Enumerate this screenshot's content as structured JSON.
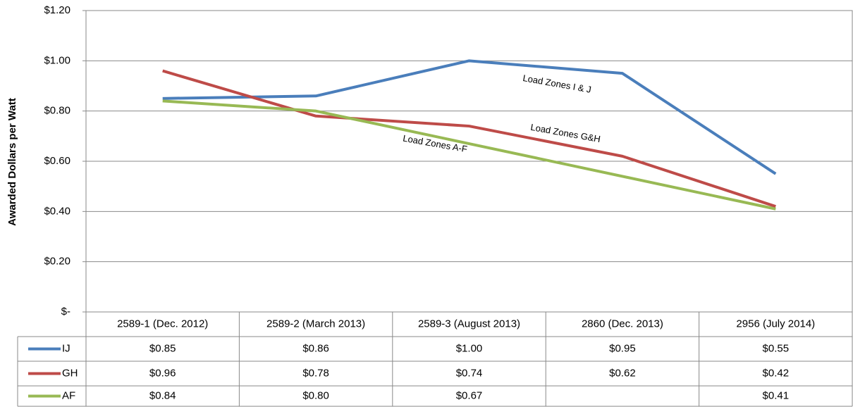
{
  "chart_data": {
    "type": "line",
    "y_title": "Awarded Dollars per Watt",
    "categories": [
      "2589-1 (Dec. 2012)",
      "2589-2 (March 2013)",
      "2589-3 (August 2013)",
      "2860 (Dec. 2013)",
      "2956 (July 2014)"
    ],
    "series": [
      {
        "name": "IJ",
        "color": "#4a7ebb",
        "values": [
          0.85,
          0.86,
          1.0,
          0.95,
          0.55
        ],
        "value_labels": [
          "$0.85",
          "$0.86",
          "$1.00",
          "$0.95",
          "$0.55"
        ]
      },
      {
        "name": "GH",
        "color": "#be4b48",
        "values": [
          0.96,
          0.78,
          0.74,
          0.62,
          0.42
        ],
        "value_labels": [
          "$0.96",
          "$0.78",
          "$0.74",
          "$0.62",
          "$0.42"
        ]
      },
      {
        "name": "AF",
        "color": "#98b954",
        "values": [
          0.84,
          0.8,
          0.67,
          null,
          0.41
        ],
        "value_labels": [
          "$0.84",
          "$0.80",
          "$0.67",
          null,
          "$0.41"
        ]
      }
    ],
    "annotations": [
      "Load Zones I & J",
      "Load Zones G&H",
      "Load Zones A-F"
    ],
    "ylim": [
      0,
      1.2
    ],
    "yticks": [
      {
        "value": 0,
        "label": "$-"
      },
      {
        "value": 0.2,
        "label": "$0.20"
      },
      {
        "value": 0.4,
        "label": "$0.40"
      },
      {
        "value": 0.6,
        "label": "$0.60"
      },
      {
        "value": 0.8,
        "label": "$0.80"
      },
      {
        "value": 1.0,
        "label": "$1.00"
      },
      {
        "value": 1.2,
        "label": "$1.20"
      }
    ],
    "grid": true,
    "connect_gaps": true,
    "data_table": true
  }
}
